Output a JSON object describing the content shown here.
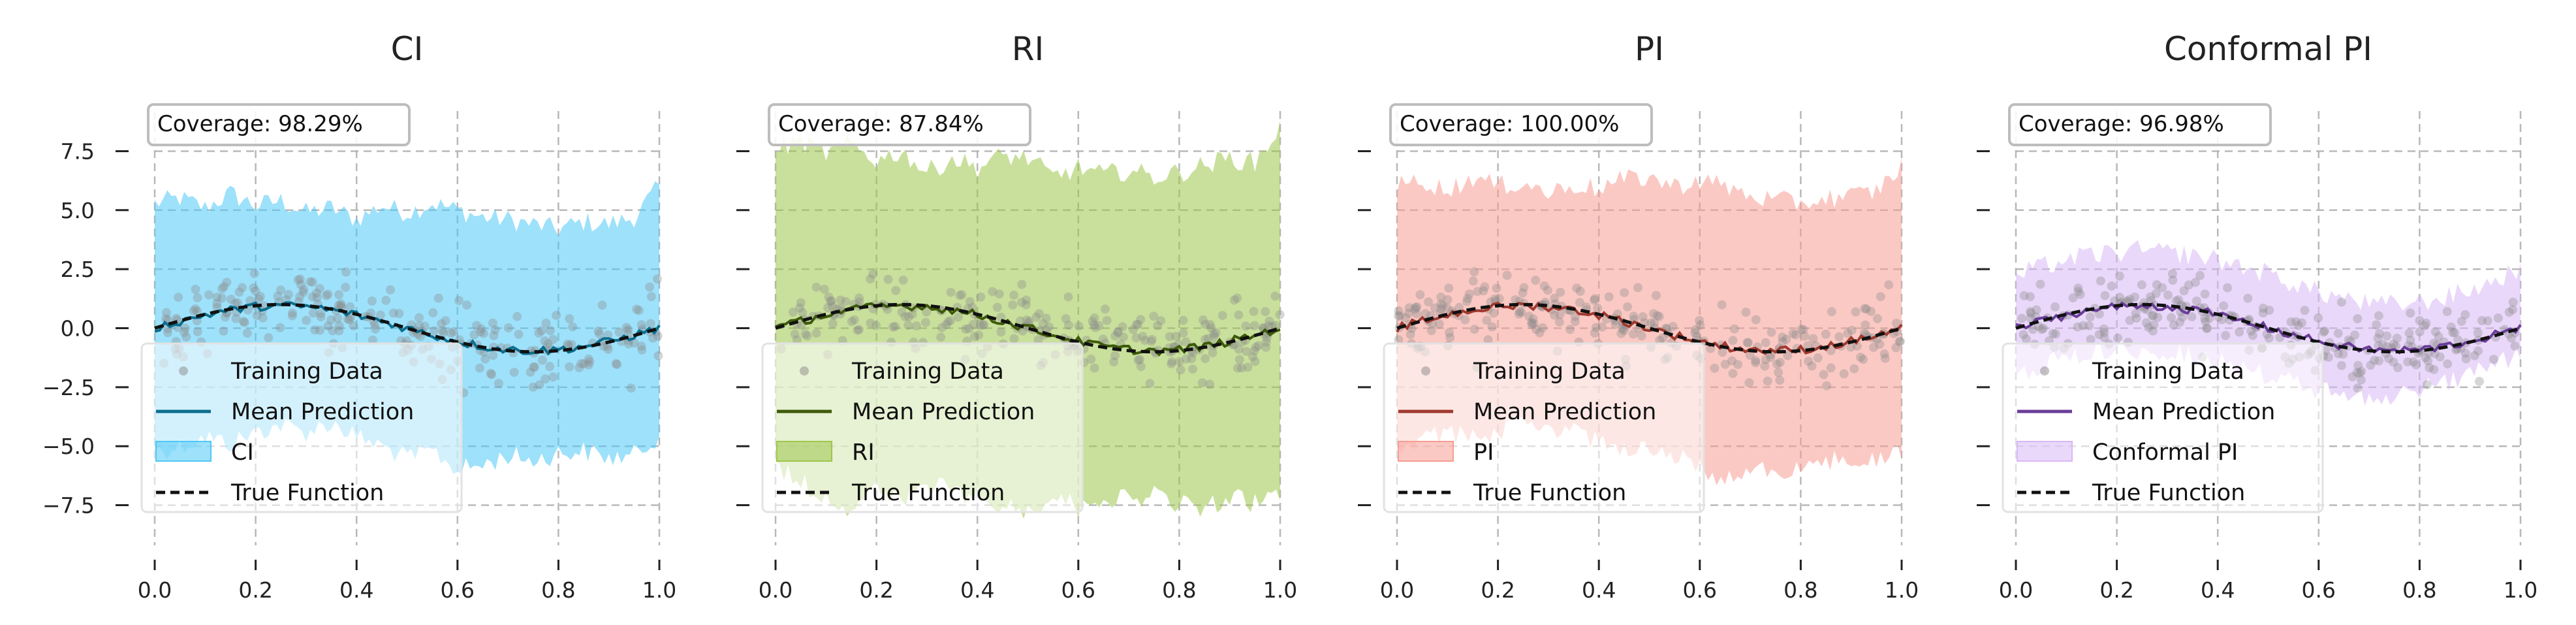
{
  "figure": {
    "background": "#ffffff"
  },
  "chart_data": [
    {
      "type": "line",
      "title": "CI",
      "coverage_text": "Coverage: 98.29%",
      "band_color": "#4fc8f5",
      "mean_color": "#0b6f8e",
      "xlim": [
        0.0,
        1.0
      ],
      "ylim": [
        -9.2,
        9.2
      ],
      "xticks": [
        "0.0",
        "0.2",
        "0.4",
        "0.6",
        "0.8",
        "1.0"
      ],
      "yticks": [
        "7.5",
        "5.0",
        "2.5",
        "0.0",
        "−2.5",
        "−5.0",
        "−7.5"
      ],
      "show_ytick_labels": true,
      "grid": true,
      "legend_position": "lower left",
      "legend": [
        "Training Data",
        "Mean Prediction",
        "CI",
        "True Function"
      ],
      "band": {
        "x": [
          0.0,
          0.05,
          0.1,
          0.15,
          0.2,
          0.25,
          0.3,
          0.35,
          0.4,
          0.45,
          0.5,
          0.55,
          0.6,
          0.65,
          0.7,
          0.75,
          0.8,
          0.85,
          0.9,
          0.95,
          1.0
        ],
        "upper": [
          5.3,
          5.5,
          5.1,
          5.7,
          5.2,
          5.4,
          4.9,
          5.1,
          4.6,
          5.2,
          4.9,
          5.3,
          5.0,
          4.7,
          4.6,
          4.4,
          4.2,
          4.5,
          4.4,
          4.7,
          6.0
        ],
        "lower": [
          -5.2,
          -5.0,
          -4.6,
          -4.9,
          -4.4,
          -4.1,
          -4.4,
          -4.0,
          -4.6,
          -5.0,
          -5.5,
          -5.2,
          -6.0,
          -5.8,
          -5.4,
          -5.6,
          -5.3,
          -5.2,
          -5.5,
          -5.4,
          -4.5
        ]
      }
    },
    {
      "type": "line",
      "title": "RI",
      "coverage_text": "Coverage: 87.84%",
      "band_color": "#9dc74c",
      "mean_color": "#3d5a0a",
      "xlim": [
        0.0,
        1.0
      ],
      "ylim": [
        -9.2,
        9.2
      ],
      "xticks": [
        "0.0",
        "0.2",
        "0.4",
        "0.6",
        "0.8",
        "1.0"
      ],
      "yticks": [
        "",
        "",
        "",
        "",
        "",
        "",
        ""
      ],
      "show_ytick_labels": false,
      "grid": true,
      "legend_position": "lower left",
      "legend": [
        "Training Data",
        "Mean Prediction",
        "RI",
        "True Function"
      ],
      "band": {
        "x": [
          0.0,
          0.05,
          0.1,
          0.15,
          0.2,
          0.25,
          0.3,
          0.35,
          0.4,
          0.45,
          0.5,
          0.55,
          0.6,
          0.65,
          0.7,
          0.75,
          0.8,
          0.85,
          0.9,
          0.95,
          1.0
        ],
        "upper": [
          7.6,
          7.9,
          7.4,
          7.8,
          7.1,
          7.5,
          6.6,
          7.2,
          6.8,
          7.3,
          7.2,
          6.4,
          6.8,
          6.5,
          6.7,
          6.4,
          6.6,
          6.9,
          7.2,
          7.0,
          8.5
        ],
        "lower": [
          -5.8,
          -6.5,
          -7.2,
          -7.6,
          -6.8,
          -7.4,
          -6.6,
          -6.9,
          -7.2,
          -7.5,
          -7.8,
          -7.0,
          -7.6,
          -7.1,
          -7.3,
          -7.0,
          -7.5,
          -7.6,
          -7.2,
          -7.4,
          -7.0
        ]
      }
    },
    {
      "type": "line",
      "title": "PI",
      "coverage_text": "Coverage: 100.00%",
      "band_color": "#f79c94",
      "mean_color": "#a03a2f",
      "xlim": [
        0.0,
        1.0
      ],
      "ylim": [
        -9.2,
        9.2
      ],
      "xticks": [
        "0.0",
        "0.2",
        "0.4",
        "0.6",
        "0.8",
        "1.0"
      ],
      "yticks": [
        "",
        "",
        "",
        "",
        "",
        "",
        ""
      ],
      "show_ytick_labels": false,
      "grid": true,
      "legend_position": "lower left",
      "legend": [
        "Training Data",
        "Mean Prediction",
        "PI",
        "True Function"
      ],
      "band": {
        "x": [
          0.0,
          0.05,
          0.1,
          0.15,
          0.2,
          0.25,
          0.3,
          0.35,
          0.4,
          0.45,
          0.5,
          0.55,
          0.6,
          0.65,
          0.7,
          0.75,
          0.8,
          0.85,
          0.9,
          0.95,
          1.0
        ],
        "upper": [
          6.0,
          6.3,
          5.8,
          6.4,
          6.0,
          6.2,
          5.7,
          6.1,
          5.9,
          6.3,
          6.4,
          6.0,
          6.3,
          6.0,
          5.6,
          5.4,
          5.3,
          5.5,
          5.6,
          5.8,
          6.9
        ],
        "lower": [
          -5.0,
          -4.8,
          -4.4,
          -4.7,
          -4.3,
          -4.0,
          -4.3,
          -4.4,
          -4.8,
          -5.0,
          -5.2,
          -5.4,
          -6.0,
          -6.4,
          -6.1,
          -5.9,
          -6.0,
          -5.7,
          -5.5,
          -5.6,
          -5.2
        ]
      }
    },
    {
      "type": "line",
      "title": "Conformal PI",
      "coverage_text": "Coverage: 96.98%",
      "band_color": "#d9b8f5",
      "mean_color": "#6a3d99",
      "xlim": [
        0.0,
        1.0
      ],
      "ylim": [
        -9.2,
        9.2
      ],
      "xticks": [
        "0.0",
        "0.2",
        "0.4",
        "0.6",
        "0.8",
        "1.0"
      ],
      "yticks": [
        "",
        "",
        "",
        "",
        "",
        "",
        ""
      ],
      "show_ytick_labels": false,
      "grid": true,
      "legend_position": "lower left",
      "legend": [
        "Training Data",
        "Mean Prediction",
        "Conformal PI",
        "True Function"
      ],
      "band": {
        "x": [
          0.0,
          0.05,
          0.1,
          0.15,
          0.2,
          0.25,
          0.3,
          0.35,
          0.4,
          0.45,
          0.5,
          0.55,
          0.6,
          0.65,
          0.7,
          0.75,
          0.8,
          0.85,
          0.9,
          0.95,
          1.0
        ],
        "upper": [
          2.2,
          2.6,
          2.9,
          3.1,
          3.2,
          3.3,
          3.2,
          3.1,
          2.9,
          2.6,
          2.3,
          1.9,
          1.5,
          1.3,
          1.0,
          1.0,
          1.1,
          1.3,
          1.6,
          2.0,
          2.6
        ],
        "lower": [
          -1.9,
          -1.6,
          -1.2,
          -1.0,
          -0.9,
          -0.9,
          -1.0,
          -1.2,
          -1.4,
          -1.7,
          -2.0,
          -2.3,
          -2.6,
          -2.8,
          -2.9,
          -2.8,
          -2.6,
          -2.3,
          -1.9,
          -1.5,
          -1.2
        ]
      }
    }
  ]
}
